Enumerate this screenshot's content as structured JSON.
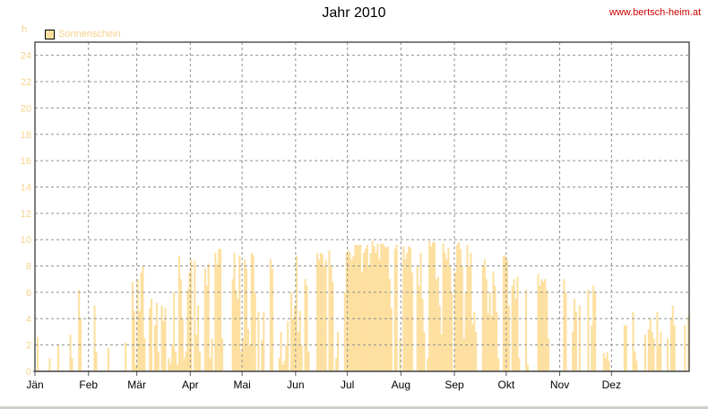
{
  "header": {
    "title": "Jahr 2010",
    "site": "www.bertsch-heim.at"
  },
  "chart_data": {
    "type": "bar",
    "title": "Jahr 2010",
    "ylabel": "h",
    "ylim": [
      0,
      25
    ],
    "yticks": [
      0,
      2,
      4,
      6,
      8,
      10,
      12,
      14,
      16,
      18,
      20,
      22,
      24
    ],
    "grid": true,
    "legend_position": "top-left",
    "colors": {
      "bar": "#fde0a0",
      "tick": "#f5d38e",
      "grid": "#909090",
      "frame": "#555555"
    },
    "months": [
      "Jän",
      "Feb",
      "Mär",
      "Apr",
      "Mai",
      "Jun",
      "Jul",
      "Aug",
      "Sep",
      "Okt",
      "Nov",
      "Dez"
    ],
    "series": [
      {
        "name": "Sonnenschein",
        "daily_hours": [
          0,
          2.6,
          0,
          0,
          0,
          0,
          0,
          0,
          1.0,
          0,
          0,
          0,
          0,
          2.0,
          0,
          0,
          0,
          0,
          0,
          0,
          2.8,
          1.0,
          0,
          0,
          0,
          6.2,
          4.0,
          0,
          0,
          0,
          0,
          0,
          0,
          0,
          5.0,
          1.5,
          0,
          0,
          0,
          0,
          0,
          0,
          1.8,
          0,
          0,
          0,
          0,
          0,
          0,
          0,
          0,
          0,
          2.2,
          0,
          0,
          0,
          6.8,
          4.6,
          0.5,
          7.0,
          4.6,
          7.5,
          8.0,
          2.5,
          0,
          0,
          4.8,
          5.5,
          0,
          3.5,
          5.2,
          1.5,
          0,
          5.0,
          3.8,
          4.8,
          0,
          1.0,
          0.6,
          2.0,
          6.0,
          1.5,
          0.5,
          8.8,
          7.0,
          4.0,
          1.0,
          1.5,
          6.2,
          7.5,
          8.5,
          0,
          8.4,
          2.8,
          5.0,
          1.5,
          0,
          0,
          7.8,
          6.5,
          8.2,
          1.0,
          2.5,
          0,
          9.0,
          8.2,
          9.3,
          9.3,
          2.5,
          0,
          0,
          0,
          0,
          0,
          7.0,
          9.0,
          6.2,
          5.5,
          8.8,
          1.5,
          2.5,
          8.5,
          7.8,
          3.2,
          2.0,
          9.0,
          8.8,
          6.0,
          0,
          4.5,
          0,
          2.4,
          4.5,
          0,
          0,
          0,
          8.5,
          7.8,
          0,
          0,
          0,
          1.0,
          3.0,
          0.5,
          0.8,
          2.0,
          3.8,
          0,
          6.0,
          4.0,
          5.0,
          8.8,
          3.0,
          4.6,
          2.0,
          0,
          7.0,
          6.5,
          1.5,
          0,
          0,
          0,
          0,
          9.0,
          8.5,
          9.0,
          8.9,
          8.0,
          8.5,
          0,
          9.2,
          8.0,
          6.8,
          0,
          1.0,
          3.0,
          0,
          0,
          0,
          6.0,
          9.0,
          9.2,
          9.0,
          8.5,
          8.8,
          9.6,
          9.6,
          9.6,
          9.6,
          7.5,
          9.0,
          9.3,
          9.6,
          8.0,
          9.0,
          9.9,
          9.5,
          9.0,
          9.7,
          8.5,
          9.7,
          9.7,
          9.5,
          9.4,
          9.5,
          7.0,
          4.8,
          0,
          9.3,
          9.6,
          0,
          2.5,
          0,
          9.5,
          8.5,
          9.0,
          9.5,
          9.4,
          7.5,
          0,
          0,
          8.0,
          6.5,
          9.0,
          5.5,
          3.0,
          0,
          1.0,
          9.9,
          9.5,
          9.8,
          9.8,
          7.0,
          7.2,
          5.0,
          2.8,
          9.7,
          9.0,
          8.5,
          9.4,
          8.0,
          6.0,
          0,
          7.5,
          9.6,
          9.8,
          9.3,
          8.0,
          2.5,
          6.0,
          9.6,
          8.0,
          9.0,
          3.6,
          4.5,
          3.0,
          0,
          0,
          0,
          8.0,
          8.5,
          7.0,
          4.4,
          6.0,
          4.2,
          7.6,
          6.5,
          4.5,
          1.0,
          0,
          0,
          8.8,
          8.8,
          8.5,
          5.0,
          0,
          6.5,
          7.0,
          5.5,
          7.2,
          1.0,
          0,
          0,
          0,
          6.2,
          0.5,
          0,
          0,
          0,
          0,
          0,
          7.4,
          6.5,
          7.0,
          6.8,
          7.0,
          6.2,
          2.5,
          0,
          0,
          0,
          0,
          0,
          0,
          0,
          0,
          7.0,
          6.0,
          0,
          0,
          0,
          3.0,
          5.5,
          4.5,
          0,
          5.0,
          0,
          0,
          0,
          0,
          6.2,
          0,
          3.5,
          6.5,
          6.0,
          0,
          0,
          0,
          0,
          1.4,
          1.0,
          1.5,
          0.8,
          0,
          0,
          0,
          0,
          0,
          0,
          0,
          0,
          3.5,
          3.5,
          0,
          0,
          0,
          4.5,
          1.5,
          0.8,
          0,
          0,
          0,
          0,
          2.8,
          0,
          3.2,
          4.0,
          3.0,
          2.5,
          0,
          4.5,
          2.0,
          3.0,
          0,
          0,
          0,
          2.5,
          0,
          4.0,
          5.0,
          3.5,
          0,
          0,
          0,
          0,
          0,
          3.5,
          0,
          4.2
        ]
      }
    ]
  }
}
